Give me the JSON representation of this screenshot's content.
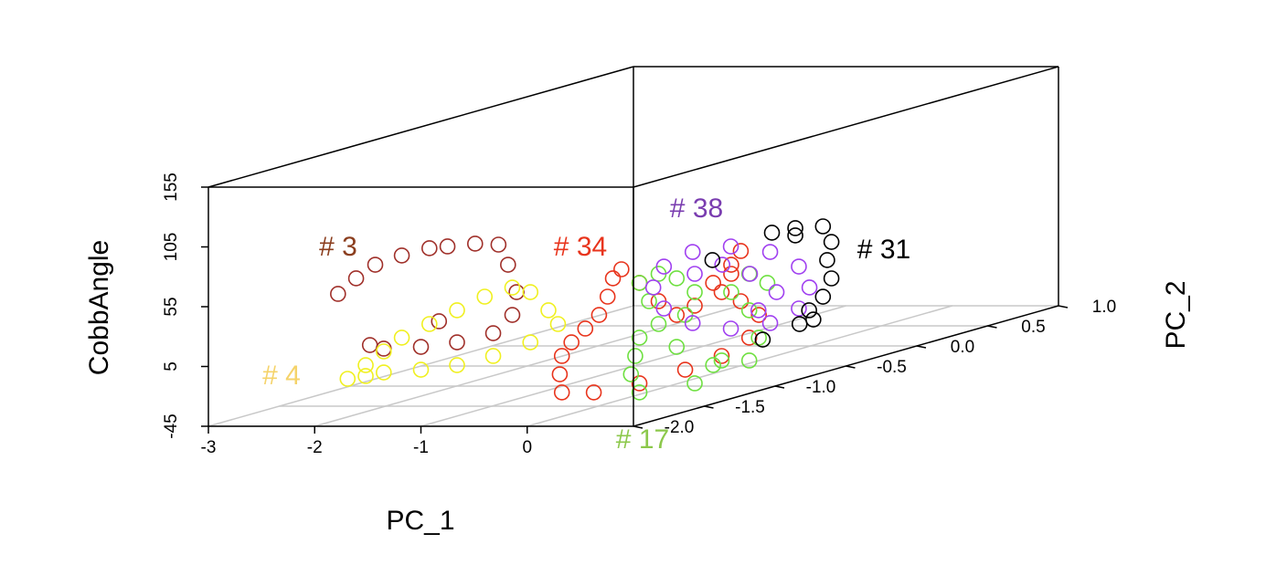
{
  "chart_data": {
    "type": "scatter3d",
    "xlabel": "PC_1",
    "ylabel": "PC_2",
    "zlabel": "CobbAngle",
    "xlim": [
      -3,
      1
    ],
    "ylim": [
      -2,
      1
    ],
    "zlim": [
      -45,
      155
    ],
    "xticks": [
      -3,
      -2,
      -1,
      0
    ],
    "yticks": [
      {
        "value": -2,
        "label": "-2.0"
      },
      -1.5,
      {
        "value": -1,
        "label": "-1.0"
      },
      -0.5,
      {
        "value": 0,
        "label": "0.0"
      },
      0.5,
      {
        "value": 1,
        "label": "1.0"
      }
    ],
    "zticks": [
      -45,
      5,
      55,
      105,
      155
    ],
    "grid": true,
    "series": [
      {
        "name": "# 3",
        "color": "#a0302a",
        "label_color": "#8b3e1e",
        "x": [
          -1.78,
          -1.61,
          -1.43,
          -1.18,
          -0.92,
          -0.75,
          -0.49,
          -0.27,
          -0.18,
          -0.1,
          -0.14,
          -0.32,
          -0.66,
          -1.0,
          -1.35,
          -1.48,
          -0.83
        ],
        "y": [
          -2,
          -2,
          -2,
          -2,
          -2,
          -2,
          -2,
          -2,
          -2,
          -2,
          -2,
          -2,
          -2,
          -2,
          -2,
          -2,
          -2
        ],
        "z": [
          65.7,
          78.7,
          90.1,
          97.8,
          103.9,
          105.4,
          107.7,
          106.9,
          90.1,
          67.2,
          48.1,
          32.8,
          25.2,
          21.4,
          19.9,
          22.9,
          42.8
        ]
      },
      {
        "name": "# 4",
        "color": "#f0f020",
        "label_color": "#f5d36a",
        "x": [
          -1.69,
          -1.52,
          -1.35,
          -1.18,
          -0.92,
          -0.66,
          -0.4,
          -0.14,
          0.03,
          0.2,
          0.29,
          0.03,
          -0.32,
          -0.66,
          -1.0,
          -1.35,
          -1.52
        ],
        "y": [
          -2,
          -2,
          -2,
          -2,
          -2,
          -2,
          -2,
          -2,
          -2,
          -2,
          -2,
          -2,
          -2,
          -2,
          -2,
          -2,
          -2
        ],
        "z": [
          -5.3,
          6.1,
          17.6,
          29.1,
          40.5,
          52.0,
          63.4,
          71.0,
          67.2,
          52.0,
          40.5,
          25.2,
          13.8,
          6.1,
          2.3,
          0.0,
          -3.0
        ]
      },
      {
        "name": "# 34",
        "color": "#e8341c",
        "label_color": "#e8341c",
        "x": [
          -0.34,
          -0.36,
          -0.34,
          -0.25,
          -0.12,
          0.01,
          0.09,
          0.14,
          0.22,
          0.39,
          0.57,
          0.74,
          0.91,
          -0.25,
          -0.08,
          0.01,
          -0.08,
          -0.17,
          0.01,
          0.18,
          0.09,
          -0.17,
          0.82,
          0.39,
          -0.04
        ],
        "y": [
          -1.5,
          -1.5,
          -1.5,
          -1.5,
          -1.5,
          -1.5,
          -1.5,
          -1.5,
          -1.5,
          -1.5,
          -1.5,
          -1.5,
          -1.5,
          -0.5,
          -0.5,
          -0.5,
          -0.5,
          -0.5,
          -0.5,
          -0.5,
          -0.5,
          -0.5,
          -1.5,
          -1.5,
          -1.5
        ],
        "z": [
          -33.5,
          -18.3,
          -3.0,
          8.4,
          19.9,
          31.3,
          46.6,
          61.9,
          69.5,
          58.1,
          42.8,
          31.3,
          39.0,
          24.5,
          39.7,
          51.2,
          32.1,
          16.8,
          9.2,
          -2.3,
          -21.3,
          -36.6,
          -14.5,
          -25.9,
          -33.5
        ]
      },
      {
        "name": "# 17",
        "color": "#6ee040",
        "label_color": "#8cc84b",
        "x": [
          0.39,
          0.31,
          0.35,
          0.39,
          0.57,
          0.82,
          0.91,
          0.74,
          0.57,
          0.39,
          0.48,
          0.74,
          -0.25,
          0.09,
          0.18,
          0.09,
          -0.08,
          0.09,
          0.26,
          0.91,
          -0.17
        ],
        "y": [
          -1.5,
          -1.5,
          -1.5,
          -1.5,
          -1.5,
          -1.5,
          -1.5,
          -1.5,
          -1.5,
          -1.5,
          -1.5,
          -1.5,
          -0.5,
          -0.5,
          -0.5,
          -0.5,
          -0.5,
          -0.5,
          -0.5,
          -1.5,
          -0.5
        ],
        "z": [
          -33.5,
          -18.3,
          -3.0,
          12.3,
          23.7,
          31.3,
          50.4,
          61.9,
          65.7,
          58.1,
          42.8,
          4.6,
          -44.2,
          -40.4,
          -21.3,
          1.6,
          16.8,
          32.1,
          24.5,
          -25.9,
          -40.4
        ]
      },
      {
        "name": "# 38",
        "color": "#a040f0",
        "label_color": "#7a3db0",
        "x": [
          -0.01,
          -0.11,
          -0.38,
          -0.75,
          -1.11,
          -1.38,
          -1.48,
          -1.38,
          -1.11,
          -0.75,
          -0.38,
          -0.11,
          -1.09,
          -0.83,
          -0.57,
          -0.32,
          -0.49
        ],
        "y": [
          0,
          0,
          0,
          0,
          0,
          0,
          0,
          0,
          0,
          0,
          0,
          0,
          0,
          0,
          0,
          0,
          0
        ],
        "z": [
          3.9,
          21.4,
          33.6,
          38.2,
          33.6,
          21.4,
          3.9,
          -13.7,
          -25.9,
          -30.5,
          -25.9,
          -13.7,
          15.3,
          22.9,
          15.3,
          0.0,
          -15.2
        ]
      },
      {
        "name": "# 31",
        "color": "#000000",
        "label_color": "#000000",
        "x": [
          -1.03,
          -0.81,
          -0.55,
          -0.47,
          -0.51,
          -0.47,
          -0.55,
          -0.68,
          -0.77,
          -0.64,
          -0.81,
          -1.59,
          -0.45
        ],
        "y": [
          0.5,
          0.5,
          0.5,
          0.5,
          0.5,
          0.5,
          0.5,
          0.5,
          0.5,
          0.5,
          0.5,
          0.5,
          0
        ],
        "z": [
          32.9,
          36.7,
          38.2,
          25.2,
          10.0,
          -5.3,
          -20.6,
          -32.0,
          -43.5,
          -39.7,
          30.6,
          10.0,
          -39.7
        ]
      }
    ]
  }
}
